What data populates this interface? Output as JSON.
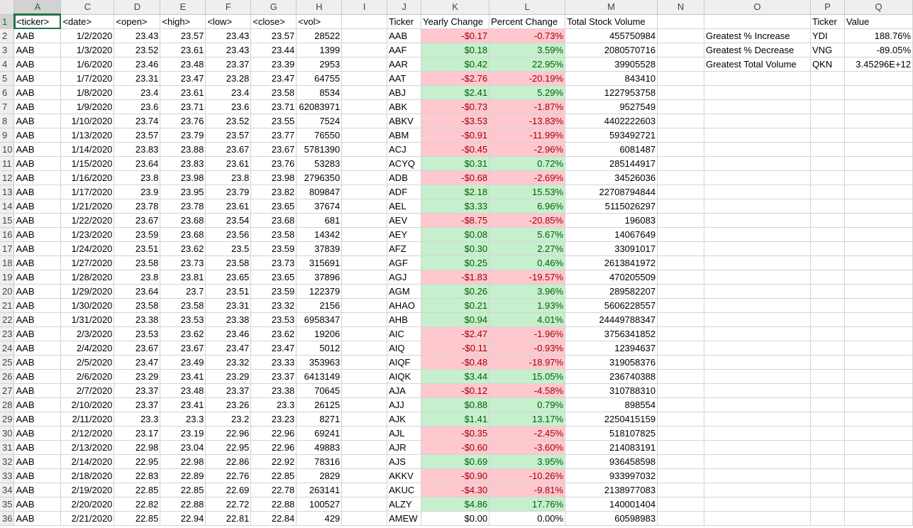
{
  "columns": [
    "A",
    "C",
    "D",
    "E",
    "F",
    "G",
    "H",
    "I",
    "J",
    "K",
    "L",
    "M",
    "N",
    "O",
    "P",
    "Q"
  ],
  "header_row": [
    "<ticker>",
    "<date>",
    "<open>",
    "<high>",
    "<low>",
    "<close>",
    "<vol>",
    "",
    "Ticker",
    "Yearly Change",
    "Percent Change",
    "Total Stock Volume",
    "",
    "",
    "Ticker",
    "Value"
  ],
  "colors": {
    "positive_fill": "#c6efce",
    "positive_text": "#006100",
    "negative_fill": "#ffc7ce",
    "negative_text": "#9c0006",
    "selection": "#217346"
  },
  "rows": [
    {
      "n": "2",
      "A": "AAB",
      "C": "1/2/2020",
      "D": "23.43",
      "E": "23.57",
      "F": "23.43",
      "G": "23.57",
      "H": "28522",
      "J": "AAB",
      "K": "-$0.17",
      "L": "-0.73%",
      "M": "455750984",
      "O": "Greatest % Increase",
      "P": "YDI",
      "Q": "188.76%",
      "s": "neg"
    },
    {
      "n": "3",
      "A": "AAB",
      "C": "1/3/2020",
      "D": "23.52",
      "E": "23.61",
      "F": "23.43",
      "G": "23.44",
      "H": "1399",
      "J": "AAF",
      "K": "$0.18",
      "L": "3.59%",
      "M": "2080570716",
      "O": "Greatest % Decrease",
      "P": "VNG",
      "Q": "-89.05%",
      "s": "pos"
    },
    {
      "n": "4",
      "A": "AAB",
      "C": "1/6/2020",
      "D": "23.46",
      "E": "23.48",
      "F": "23.37",
      "G": "23.39",
      "H": "2953",
      "J": "AAR",
      "K": "$0.42",
      "L": "22.95%",
      "M": "39905528",
      "O": "Greatest Total Volume",
      "P": "QKN",
      "Q": "3.45296E+12",
      "s": "pos"
    },
    {
      "n": "5",
      "A": "AAB",
      "C": "1/7/2020",
      "D": "23.31",
      "E": "23.47",
      "F": "23.28",
      "G": "23.47",
      "H": "64755",
      "J": "AAT",
      "K": "-$2.76",
      "L": "-20.19%",
      "M": "843410",
      "s": "neg"
    },
    {
      "n": "6",
      "A": "AAB",
      "C": "1/8/2020",
      "D": "23.4",
      "E": "23.61",
      "F": "23.4",
      "G": "23.58",
      "H": "8534",
      "J": "ABJ",
      "K": "$2.41",
      "L": "5.29%",
      "M": "1227953758",
      "s": "pos"
    },
    {
      "n": "7",
      "A": "AAB",
      "C": "1/9/2020",
      "D": "23.6",
      "E": "23.71",
      "F": "23.6",
      "G": "23.71",
      "H": "62083971",
      "J": "ABK",
      "K": "-$0.73",
      "L": "-1.87%",
      "M": "9527549",
      "s": "neg"
    },
    {
      "n": "8",
      "A": "AAB",
      "C": "1/10/2020",
      "D": "23.74",
      "E": "23.76",
      "F": "23.52",
      "G": "23.55",
      "H": "7524",
      "J": "ABKV",
      "K": "-$3.53",
      "L": "-13.83%",
      "M": "4402222603",
      "s": "neg"
    },
    {
      "n": "9",
      "A": "AAB",
      "C": "1/13/2020",
      "D": "23.57",
      "E": "23.79",
      "F": "23.57",
      "G": "23.77",
      "H": "76550",
      "J": "ABM",
      "K": "-$0.91",
      "L": "-11.99%",
      "M": "593492721",
      "s": "neg"
    },
    {
      "n": "10",
      "A": "AAB",
      "C": "1/14/2020",
      "D": "23.83",
      "E": "23.88",
      "F": "23.67",
      "G": "23.67",
      "H": "5781390",
      "J": "ACJ",
      "K": "-$0.45",
      "L": "-2.96%",
      "M": "6081487",
      "s": "neg"
    },
    {
      "n": "11",
      "A": "AAB",
      "C": "1/15/2020",
      "D": "23.64",
      "E": "23.83",
      "F": "23.61",
      "G": "23.76",
      "H": "53283",
      "J": "ACYQ",
      "K": "$0.31",
      "L": "0.72%",
      "M": "285144917",
      "s": "pos"
    },
    {
      "n": "12",
      "A": "AAB",
      "C": "1/16/2020",
      "D": "23.8",
      "E": "23.98",
      "F": "23.8",
      "G": "23.98",
      "H": "2796350",
      "J": "ADB",
      "K": "-$0.68",
      "L": "-2.69%",
      "M": "34526036",
      "s": "neg"
    },
    {
      "n": "13",
      "A": "AAB",
      "C": "1/17/2020",
      "D": "23.9",
      "E": "23.95",
      "F": "23.79",
      "G": "23.82",
      "H": "809847",
      "J": "ADF",
      "K": "$2.18",
      "L": "15.53%",
      "M": "22708794844",
      "s": "pos"
    },
    {
      "n": "14",
      "A": "AAB",
      "C": "1/21/2020",
      "D": "23.78",
      "E": "23.78",
      "F": "23.61",
      "G": "23.65",
      "H": "37674",
      "J": "AEL",
      "K": "$3.33",
      "L": "6.96%",
      "M": "5115026297",
      "s": "pos"
    },
    {
      "n": "15",
      "A": "AAB",
      "C": "1/22/2020",
      "D": "23.67",
      "E": "23.68",
      "F": "23.54",
      "G": "23.68",
      "H": "681",
      "J": "AEV",
      "K": "-$8.75",
      "L": "-20.85%",
      "M": "196083",
      "s": "neg"
    },
    {
      "n": "16",
      "A": "AAB",
      "C": "1/23/2020",
      "D": "23.59",
      "E": "23.68",
      "F": "23.56",
      "G": "23.58",
      "H": "14342",
      "J": "AEY",
      "K": "$0.08",
      "L": "5.67%",
      "M": "14067649",
      "s": "pos"
    },
    {
      "n": "17",
      "A": "AAB",
      "C": "1/24/2020",
      "D": "23.51",
      "E": "23.62",
      "F": "23.5",
      "G": "23.59",
      "H": "37839",
      "J": "AFZ",
      "K": "$0.30",
      "L": "2.27%",
      "M": "33091017",
      "s": "pos"
    },
    {
      "n": "18",
      "A": "AAB",
      "C": "1/27/2020",
      "D": "23.58",
      "E": "23.73",
      "F": "23.58",
      "G": "23.73",
      "H": "315691",
      "J": "AGF",
      "K": "$0.25",
      "L": "0.46%",
      "M": "2613841972",
      "s": "pos"
    },
    {
      "n": "19",
      "A": "AAB",
      "C": "1/28/2020",
      "D": "23.8",
      "E": "23.81",
      "F": "23.65",
      "G": "23.65",
      "H": "37896",
      "J": "AGJ",
      "K": "-$1.83",
      "L": "-19.57%",
      "M": "470205509",
      "s": "neg"
    },
    {
      "n": "20",
      "A": "AAB",
      "C": "1/29/2020",
      "D": "23.64",
      "E": "23.7",
      "F": "23.51",
      "G": "23.59",
      "H": "122379",
      "J": "AGM",
      "K": "$0.26",
      "L": "3.96%",
      "M": "289582207",
      "s": "pos"
    },
    {
      "n": "21",
      "A": "AAB",
      "C": "1/30/2020",
      "D": "23.58",
      "E": "23.58",
      "F": "23.31",
      "G": "23.32",
      "H": "2156",
      "J": "AHAO",
      "K": "$0.21",
      "L": "1.93%",
      "M": "5606228557",
      "s": "pos"
    },
    {
      "n": "22",
      "A": "AAB",
      "C": "1/31/2020",
      "D": "23.38",
      "E": "23.53",
      "F": "23.38",
      "G": "23.53",
      "H": "6958347",
      "J": "AHB",
      "K": "$0.94",
      "L": "4.01%",
      "M": "24449788347",
      "s": "pos"
    },
    {
      "n": "23",
      "A": "AAB",
      "C": "2/3/2020",
      "D": "23.53",
      "E": "23.62",
      "F": "23.46",
      "G": "23.62",
      "H": "19206",
      "J": "AIC",
      "K": "-$2.47",
      "L": "-1.96%",
      "M": "3756341852",
      "s": "neg"
    },
    {
      "n": "24",
      "A": "AAB",
      "C": "2/4/2020",
      "D": "23.67",
      "E": "23.67",
      "F": "23.47",
      "G": "23.47",
      "H": "5012",
      "J": "AIQ",
      "K": "-$0.11",
      "L": "-0.93%",
      "M": "12394637",
      "s": "neg"
    },
    {
      "n": "25",
      "A": "AAB",
      "C": "2/5/2020",
      "D": "23.47",
      "E": "23.49",
      "F": "23.32",
      "G": "23.33",
      "H": "353963",
      "J": "AIQF",
      "K": "-$0.48",
      "L": "-18.97%",
      "M": "319058376",
      "s": "neg"
    },
    {
      "n": "26",
      "A": "AAB",
      "C": "2/6/2020",
      "D": "23.29",
      "E": "23.41",
      "F": "23.29",
      "G": "23.37",
      "H": "6413149",
      "J": "AIQK",
      "K": "$3.44",
      "L": "15.05%",
      "M": "236740388",
      "s": "pos"
    },
    {
      "n": "27",
      "A": "AAB",
      "C": "2/7/2020",
      "D": "23.37",
      "E": "23.48",
      "F": "23.37",
      "G": "23.38",
      "H": "70645",
      "J": "AJA",
      "K": "-$0.12",
      "L": "-4.58%",
      "M": "310788310",
      "s": "neg"
    },
    {
      "n": "28",
      "A": "AAB",
      "C": "2/10/2020",
      "D": "23.37",
      "E": "23.41",
      "F": "23.26",
      "G": "23.3",
      "H": "26125",
      "J": "AJJ",
      "K": "$0.88",
      "L": "0.79%",
      "M": "898554",
      "s": "pos"
    },
    {
      "n": "29",
      "A": "AAB",
      "C": "2/11/2020",
      "D": "23.3",
      "E": "23.3",
      "F": "23.2",
      "G": "23.23",
      "H": "8271",
      "J": "AJK",
      "K": "$1.41",
      "L": "13.17%",
      "M": "2250415159",
      "s": "pos"
    },
    {
      "n": "30",
      "A": "AAB",
      "C": "2/12/2020",
      "D": "23.17",
      "E": "23.19",
      "F": "22.96",
      "G": "22.96",
      "H": "69241",
      "J": "AJL",
      "K": "-$0.35",
      "L": "-2.45%",
      "M": "518107825",
      "s": "neg"
    },
    {
      "n": "31",
      "A": "AAB",
      "C": "2/13/2020",
      "D": "22.98",
      "E": "23.04",
      "F": "22.95",
      "G": "22.96",
      "H": "49883",
      "J": "AJR",
      "K": "-$0.60",
      "L": "-3.60%",
      "M": "214083191",
      "s": "neg"
    },
    {
      "n": "32",
      "A": "AAB",
      "C": "2/14/2020",
      "D": "22.95",
      "E": "22.98",
      "F": "22.86",
      "G": "22.92",
      "H": "78316",
      "J": "AJS",
      "K": "$0.69",
      "L": "3.95%",
      "M": "936458598",
      "s": "pos"
    },
    {
      "n": "33",
      "A": "AAB",
      "C": "2/18/2020",
      "D": "22.83",
      "E": "22.89",
      "F": "22.76",
      "G": "22.85",
      "H": "2829",
      "J": "AKKV",
      "K": "-$0.90",
      "L": "-10.26%",
      "M": "933997032",
      "s": "neg"
    },
    {
      "n": "34",
      "A": "AAB",
      "C": "2/19/2020",
      "D": "22.85",
      "E": "22.85",
      "F": "22.69",
      "G": "22.78",
      "H": "263141",
      "J": "AKUC",
      "K": "-$4.30",
      "L": "-9.81%",
      "M": "2138977083",
      "s": "neg"
    },
    {
      "n": "35",
      "A": "AAB",
      "C": "2/20/2020",
      "D": "22.82",
      "E": "22.88",
      "F": "22.72",
      "G": "22.88",
      "H": "100527",
      "J": "ALZY",
      "K": "$4.86",
      "L": "17.76%",
      "M": "140001404",
      "s": "pos"
    },
    {
      "n": "36",
      "A": "AAB",
      "C": "2/21/2020",
      "D": "22.85",
      "E": "22.94",
      "F": "22.81",
      "G": "22.84",
      "H": "429",
      "J": "AMEW",
      "K": "$0.00",
      "L": "0.00%",
      "M": "60598983",
      "s": ""
    }
  ]
}
